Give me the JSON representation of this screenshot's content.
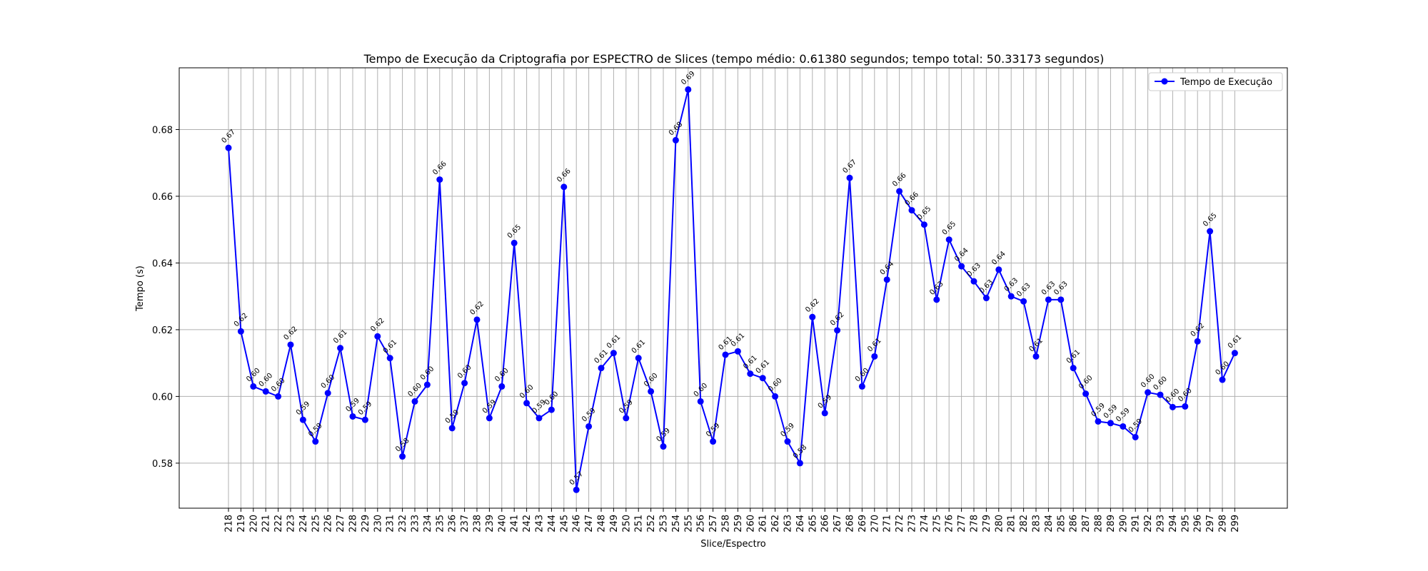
{
  "chart_data": {
    "type": "line",
    "title": "Tempo de Execução da Criptografia por ESPECTRO de Slices (tempo médio: 0.61380 segundos; tempo total: 50.33173 segundos)",
    "xlabel": "Slice/Espectro",
    "ylabel": "Tempo (s)",
    "ylim": [
      0.5665,
      0.6985
    ],
    "yticks": [
      0.58,
      0.6,
      0.62,
      0.64,
      0.66,
      0.68
    ],
    "ytick_labels": [
      "0.58",
      "0.60",
      "0.62",
      "0.64",
      "0.66",
      "0.68"
    ],
    "grid": true,
    "legend_position": "top-right",
    "color": "#0000ff",
    "categories": [
      "218",
      "219",
      "220",
      "221",
      "222",
      "223",
      "224",
      "225",
      "226",
      "227",
      "228",
      "229",
      "230",
      "231",
      "232",
      "233",
      "234",
      "235",
      "236",
      "237",
      "238",
      "239",
      "240",
      "241",
      "242",
      "243",
      "244",
      "245",
      "246",
      "247",
      "248",
      "249",
      "250",
      "251",
      "252",
      "253",
      "254",
      "255",
      "256",
      "257",
      "258",
      "259",
      "260",
      "261",
      "262",
      "263",
      "264",
      "265",
      "266",
      "267",
      "268",
      "269",
      "270",
      "271",
      "272",
      "273",
      "274",
      "275",
      "276",
      "277",
      "278",
      "279",
      "280",
      "281",
      "282",
      "283",
      "284",
      "285",
      "286",
      "287",
      "288",
      "289",
      "290",
      "291",
      "292",
      "293",
      "294",
      "295",
      "296",
      "297",
      "298",
      "299"
    ],
    "series": [
      {
        "name": "Tempo de Execução",
        "values": [
          0.6745,
          0.6195,
          0.603,
          0.6015,
          0.6,
          0.6155,
          0.593,
          0.5865,
          0.601,
          0.6145,
          0.594,
          0.593,
          0.618,
          0.6115,
          0.582,
          0.5985,
          0.6035,
          0.665,
          0.5905,
          0.604,
          0.623,
          0.5935,
          0.603,
          0.646,
          0.598,
          0.5935,
          0.596,
          0.6628,
          0.572,
          0.591,
          0.6085,
          0.613,
          0.5935,
          0.6115,
          0.6015,
          0.585,
          0.6768,
          0.692,
          0.5985,
          0.5865,
          0.6125,
          0.6135,
          0.6068,
          0.6055,
          0.6,
          0.5865,
          0.58,
          0.6238,
          0.595,
          0.6198,
          0.6655,
          0.603,
          0.612,
          0.635,
          0.6615,
          0.6558,
          0.6515,
          0.629,
          0.647,
          0.639,
          0.6345,
          0.6295,
          0.638,
          0.63,
          0.6285,
          0.612,
          0.629,
          0.629,
          0.6085,
          0.6008,
          0.5925,
          0.592,
          0.591,
          0.5878,
          0.6012,
          0.6005,
          0.5968,
          0.597,
          0.6165,
          0.6495,
          0.605,
          0.613
        ],
        "labels": [
          "0.67",
          "0.62",
          "0.60",
          "0.60",
          "0.60",
          "0.62",
          "0.59",
          "0.59",
          "0.60",
          "0.61",
          "0.59",
          "0.59",
          "0.62",
          "0.61",
          "0.58",
          "0.60",
          "0.60",
          "0.66",
          "0.59",
          "0.60",
          "0.62",
          "0.59",
          "0.60",
          "0.65",
          "0.60",
          "0.59",
          "0.60",
          "0.66",
          "0.57",
          "0.59",
          "0.61",
          "0.61",
          "0.59",
          "0.61",
          "0.60",
          "0.59",
          "0.68",
          "0.69",
          "0.60",
          "0.59",
          "0.61",
          "0.61",
          "0.61",
          "0.61",
          "0.60",
          "0.59",
          "0.58",
          "0.62",
          "0.59",
          "0.62",
          "0.67",
          "0.60",
          "0.61",
          "0.64",
          "0.66",
          "0.66",
          "0.65",
          "0.63",
          "0.65",
          "0.64",
          "0.63",
          "0.63",
          "0.64",
          "0.63",
          "0.63",
          "0.61",
          "0.63",
          "0.63",
          "0.61",
          "0.60",
          "0.59",
          "0.59",
          "0.59",
          "0.59",
          "0.60",
          "0.60",
          "0.60",
          "0.60",
          "0.62",
          "0.65",
          "0.60",
          "0.61"
        ]
      }
    ]
  }
}
